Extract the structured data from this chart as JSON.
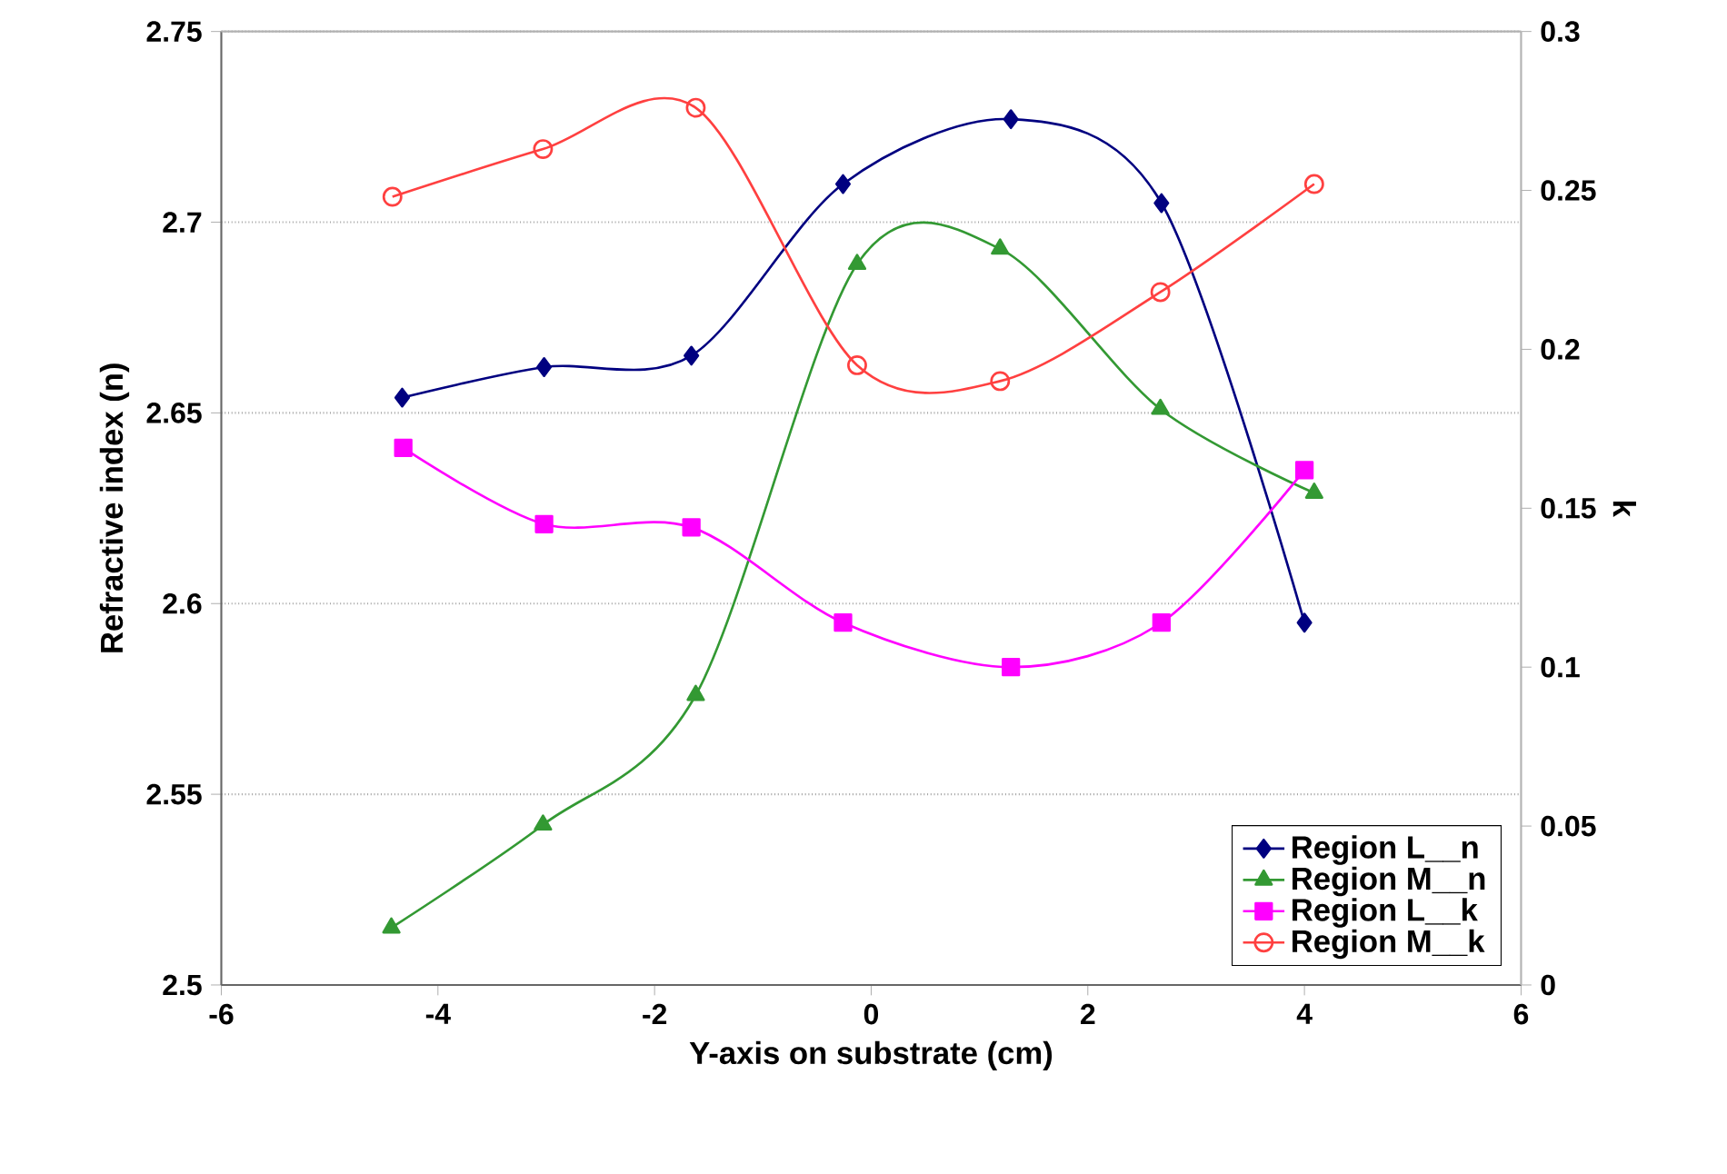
{
  "chart_data": {
    "type": "line",
    "xlabel": "Y-axis on substrate (cm)",
    "ylabel": "Refractive index (n)",
    "y2label": "k",
    "xlim": [
      -6,
      6
    ],
    "xticks": [
      -6,
      -4,
      -2,
      0,
      2,
      4,
      6
    ],
    "ylim": [
      2.5,
      2.75
    ],
    "yticks": [
      2.5,
      2.55,
      2.6,
      2.65,
      2.7,
      2.75
    ],
    "y2lim": [
      0,
      0.3
    ],
    "y2ticks": [
      0,
      0.05,
      0.1,
      0.15,
      0.2,
      0.25,
      0.3
    ],
    "grid": "y",
    "legend": "bottom right",
    "series": [
      {
        "name": "Region L__n",
        "color": "#000080",
        "marker": "diamond",
        "x": [
          -4.33,
          -3.02,
          -1.66,
          -0.26,
          1.29,
          2.68,
          4.0
        ],
        "values": [
          2.654,
          2.662,
          2.665,
          2.71,
          2.727,
          2.705,
          2.595
        ]
      },
      {
        "name": "Region M__n",
        "color": "#339933",
        "marker": "triangle",
        "x": [
          -4.43,
          -3.03,
          -1.62,
          -0.13,
          1.19,
          2.67,
          4.09
        ],
        "values": [
          2.515,
          2.542,
          2.576,
          2.689,
          2.693,
          2.651,
          2.629
        ]
      },
      {
        "name": "Region L__k",
        "color": "#ff00ff",
        "marker": "square",
        "axis": "y2",
        "x": [
          -4.32,
          -3.02,
          -1.66,
          -0.26,
          1.29,
          2.68,
          4.0
        ],
        "values": [
          0.169,
          0.145,
          0.144,
          0.114,
          0.1,
          0.114,
          0.162
        ]
      },
      {
        "name": "Region M__k",
        "color": "#ff4040",
        "marker": "circle",
        "axis": "y2",
        "x": [
          -4.42,
          -3.03,
          -1.62,
          -0.13,
          1.19,
          2.67,
          4.09
        ],
        "values": [
          0.248,
          0.263,
          0.276,
          0.195,
          0.19,
          0.218,
          0.252
        ]
      }
    ]
  }
}
